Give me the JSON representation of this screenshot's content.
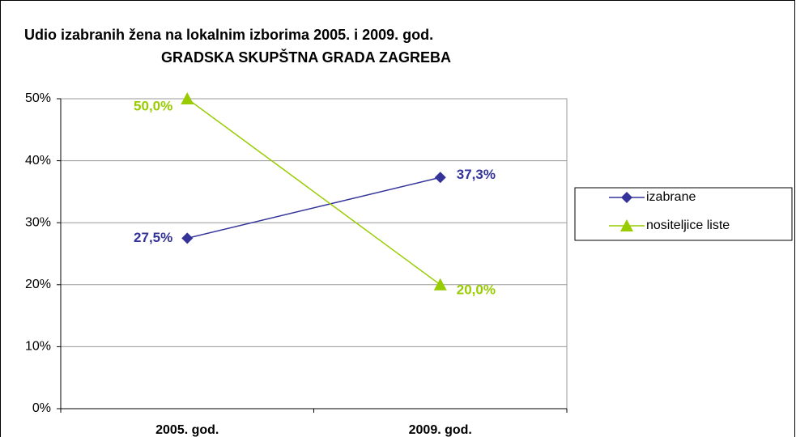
{
  "chart_data": {
    "type": "line",
    "title": "Udio izabranih žena na lokalnim izborima 2005. i 2009. god.",
    "subtitle": "GRADSKA SKUPŠTNA GRADA ZAGREBA",
    "categories": [
      "2005. god.",
      "2009. god."
    ],
    "series": [
      {
        "name": "izabrane",
        "color": "#333399",
        "marker": "diamond",
        "values": [
          27.5,
          37.3
        ],
        "value_labels": [
          "27,5%",
          "37,3%"
        ]
      },
      {
        "name": "nositeljice liste",
        "color": "#99cc00",
        "marker": "triangle",
        "values": [
          50,
          20
        ],
        "value_labels": [
          "50,0%",
          "20,0%"
        ]
      }
    ],
    "ylim": [
      0,
      50
    ],
    "yticks": [
      {
        "value": 0,
        "label": "0%"
      },
      {
        "value": 10,
        "label": "10%"
      },
      {
        "value": 20,
        "label": "20%"
      },
      {
        "value": 30,
        "label": "30%"
      },
      {
        "value": 40,
        "label": "40%"
      },
      {
        "value": 50,
        "label": "50%"
      }
    ],
    "grid": true,
    "legend": "right"
  }
}
